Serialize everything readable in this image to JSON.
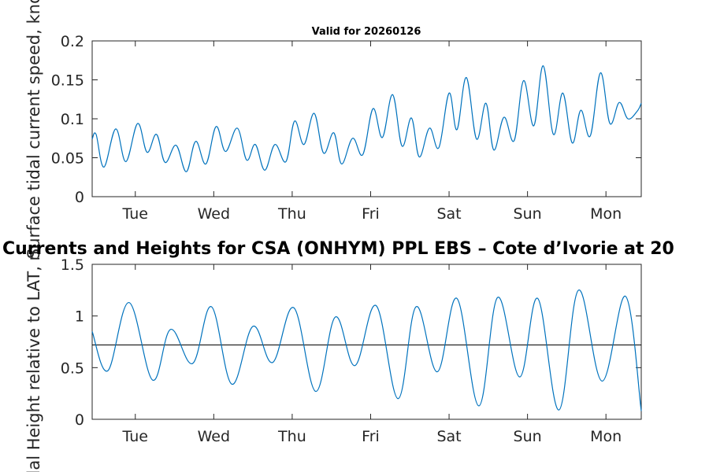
{
  "chart_data": [
    {
      "type": "line",
      "title": "Valid for 20260126",
      "xlabel": "",
      "ylabel": "Surface tidal current speed, knots",
      "xlim": [
        0,
        7
      ],
      "ylim": [
        0,
        0.2
      ],
      "yticks": [
        0,
        0.05,
        0.1,
        0.15,
        0.2
      ],
      "ytick_labels": [
        "0",
        "0.05",
        "0.1",
        "0.15",
        "0.2"
      ],
      "xticks": [
        0.55,
        1.55,
        2.55,
        3.55,
        4.55,
        5.55,
        6.55
      ],
      "xtick_labels": [
        "Tue",
        "Wed",
        "Thu",
        "Fri",
        "Sat",
        "Sun",
        "Mon"
      ],
      "series": [
        {
          "name": "current speed",
          "color": "#0072BD",
          "x": [
            0.0,
            0.05,
            0.15,
            0.3,
            0.43,
            0.58,
            0.7,
            0.82,
            0.93,
            1.07,
            1.2,
            1.32,
            1.45,
            1.58,
            1.7,
            1.85,
            1.97,
            2.08,
            2.2,
            2.33,
            2.47,
            2.58,
            2.7,
            2.83,
            2.95,
            3.08,
            3.18,
            3.32,
            3.45,
            3.58,
            3.7,
            3.83,
            3.95,
            4.07,
            4.17,
            4.3,
            4.42,
            4.55,
            4.65,
            4.77,
            4.9,
            5.02,
            5.12,
            5.25,
            5.38,
            5.5,
            5.63,
            5.75,
            5.88,
            6.0,
            6.12,
            6.23,
            6.35,
            6.48,
            6.6,
            6.72,
            6.83,
            6.95,
            7.0
          ],
          "values": [
            0.074,
            0.08,
            0.038,
            0.087,
            0.045,
            0.094,
            0.057,
            0.08,
            0.044,
            0.066,
            0.032,
            0.071,
            0.042,
            0.09,
            0.058,
            0.088,
            0.047,
            0.067,
            0.034,
            0.067,
            0.045,
            0.097,
            0.067,
            0.107,
            0.056,
            0.082,
            0.042,
            0.075,
            0.054,
            0.113,
            0.076,
            0.131,
            0.065,
            0.101,
            0.051,
            0.088,
            0.063,
            0.133,
            0.086,
            0.153,
            0.074,
            0.12,
            0.06,
            0.102,
            0.072,
            0.149,
            0.091,
            0.168,
            0.08,
            0.133,
            0.069,
            0.111,
            0.078,
            0.159,
            0.094,
            0.121,
            0.1,
            0.11,
            0.12
          ]
        }
      ]
    },
    {
      "type": "line",
      "title": "Currents and Heights for CSA (ONHYM) PPL EBS  – Cote d’Ivorie at 20",
      "xlabel": "",
      "ylabel": "Tidal Height relative to LAT, m",
      "xlim": [
        0,
        7
      ],
      "ylim": [
        0,
        1.5
      ],
      "yticks": [
        0,
        0.5,
        1,
        1.5
      ],
      "ytick_labels": [
        "0",
        "0.5",
        "1",
        "1.5"
      ],
      "xticks": [
        0.55,
        1.55,
        2.55,
        3.55,
        4.55,
        5.55,
        6.55
      ],
      "xtick_labels": [
        "Tue",
        "Wed",
        "Thu",
        "Fri",
        "Sat",
        "Sun",
        "Mon"
      ],
      "reference_line": {
        "y": 0.72,
        "color": "#000000"
      },
      "series": [
        {
          "name": "tidal height",
          "color": "#0072BD",
          "x": [
            0.0,
            0.2,
            0.47,
            0.77,
            1.0,
            1.28,
            1.52,
            1.78,
            2.05,
            2.3,
            2.57,
            2.85,
            3.1,
            3.35,
            3.62,
            3.9,
            4.13,
            4.4,
            4.65,
            4.93,
            5.17,
            5.45,
            5.68,
            5.95,
            6.2,
            6.5,
            6.8,
            7.0
          ],
          "values": [
            0.85,
            0.47,
            1.13,
            0.38,
            0.87,
            0.54,
            1.09,
            0.34,
            0.9,
            0.55,
            1.08,
            0.27,
            0.99,
            0.52,
            1.1,
            0.2,
            1.09,
            0.46,
            1.17,
            0.13,
            1.18,
            0.41,
            1.17,
            0.09,
            1.25,
            0.37,
            1.19,
            0.08
          ]
        }
      ]
    }
  ]
}
